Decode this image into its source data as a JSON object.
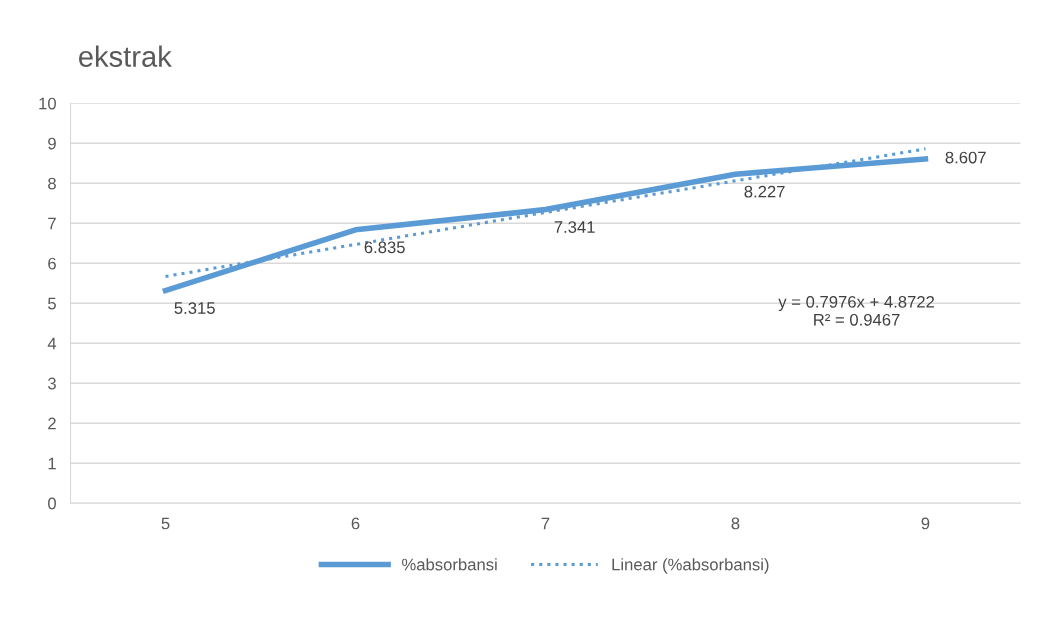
{
  "chart_data": {
    "type": "line",
    "title": "ekstrak",
    "categories": [
      "5",
      "6",
      "7",
      "8",
      "9"
    ],
    "series": [
      {
        "name": "%absorbansi",
        "color": "#5b9bd5",
        "values": [
          5.315,
          6.835,
          7.341,
          8.227,
          8.607
        ],
        "value_labels": [
          "5.315",
          "6.835",
          "7.341",
          "8.227",
          "8.607"
        ],
        "line_style": "solid"
      },
      {
        "name": "Linear (%absorbansi)",
        "color": "#5b9bd5",
        "values": [
          5.67,
          6.47,
          7.27,
          8.06,
          8.86
        ],
        "line_style": "dotted"
      }
    ],
    "ylim": [
      0,
      10
    ],
    "yticks": [
      0,
      1,
      2,
      3,
      4,
      5,
      6,
      7,
      8,
      9,
      10
    ],
    "grid": "y",
    "legend": "bottom",
    "marker": "none",
    "annotations": [
      "y = 0.7976x + 4.8722\nR² = 0.9467"
    ]
  }
}
